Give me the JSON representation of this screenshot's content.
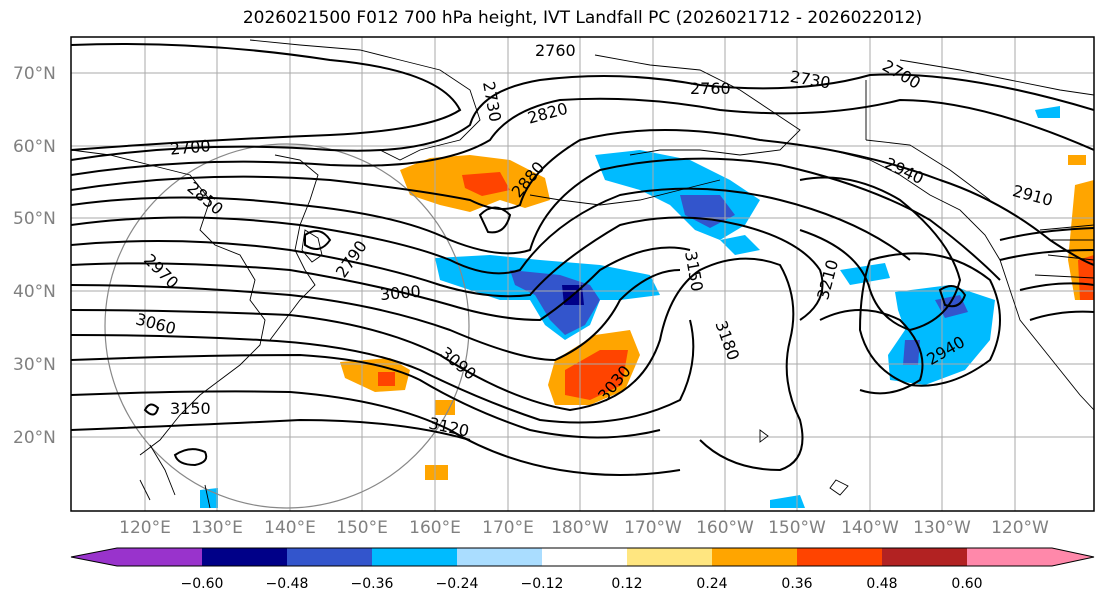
{
  "title": "2026021500 F012 700 hPa height, IVT Landfall PC (2026021712 - 2026022012)",
  "map": {
    "lat_labels": [
      "70°N",
      "60°N",
      "50°N",
      "40°N",
      "30°N",
      "20°N"
    ],
    "lon_labels": [
      "120°E",
      "130°E",
      "140°E",
      "150°E",
      "160°E",
      "170°E",
      "180°W",
      "170°W",
      "160°W",
      "150°W",
      "140°W",
      "130°W",
      "120°W"
    ],
    "contour_labels": [
      "2760",
      "2730",
      "2820",
      "2760",
      "2730",
      "2700",
      "2700",
      "2850",
      "2790",
      "2880",
      "2940",
      "2910",
      "2970",
      "3000",
      "3150",
      "3210",
      "3060",
      "3180",
      "2940",
      "3030",
      "3090",
      "3150",
      "3120"
    ],
    "colors": {
      "land": "#000000",
      "grid": "#aaaaaa",
      "contour": "#000000"
    }
  },
  "colorbar": {
    "ticks": [
      "−0.60",
      "−0.48",
      "−0.36",
      "−0.24",
      "−0.12",
      "0.12",
      "0.24",
      "0.36",
      "0.48",
      "0.60"
    ],
    "colors": [
      "#9933cc",
      "#000088",
      "#3355cc",
      "#00bbff",
      "#aaddff",
      "#ffffff",
      "#ffe680",
      "#ffa500",
      "#ff4400",
      "#b22222",
      "#ff88aa"
    ]
  }
}
